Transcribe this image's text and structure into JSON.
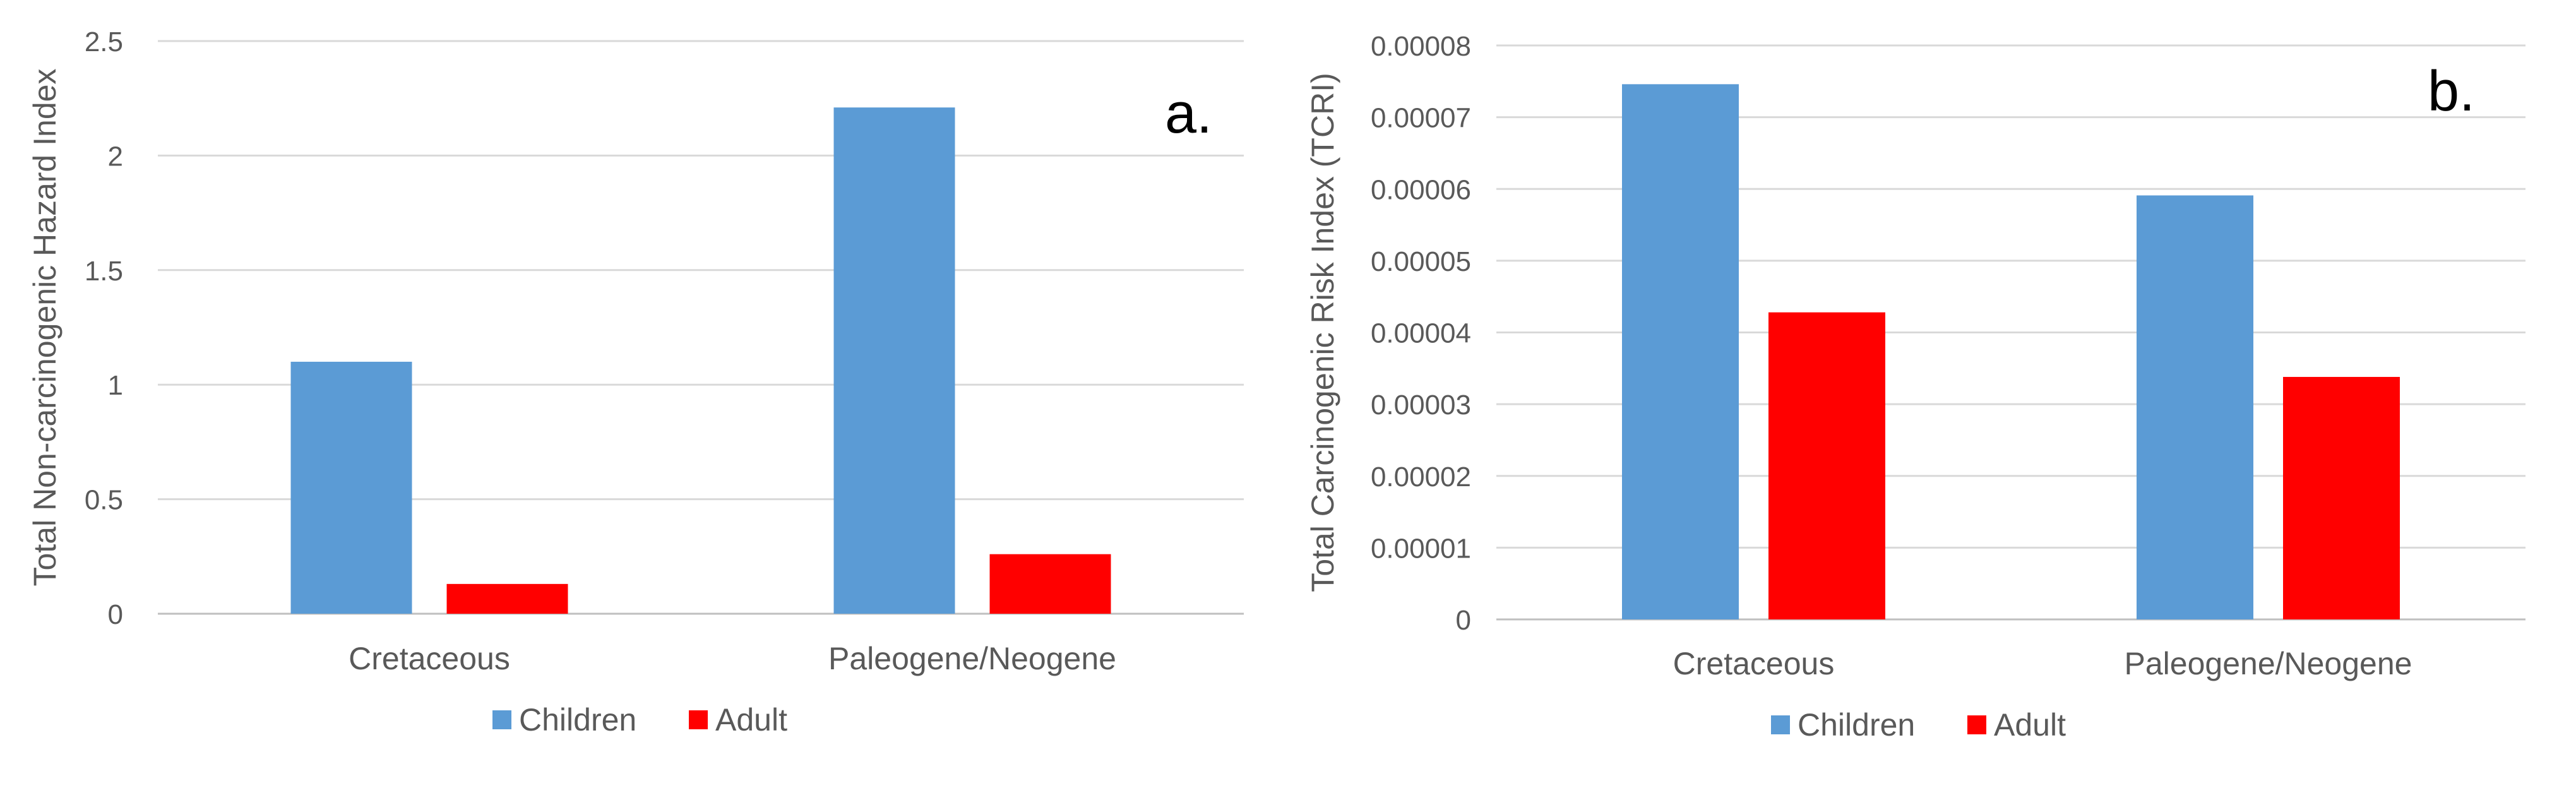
{
  "chart_data": [
    {
      "panel_label": "a.",
      "type": "bar",
      "categories": [
        "Cretaceous",
        "Paleogene/Neogene"
      ],
      "series": [
        {
          "name": "Children",
          "color": "#5B9BD5",
          "values": [
            1.1,
            2.21
          ]
        },
        {
          "name": "Adult",
          "color": "#FF0000",
          "values": [
            0.13,
            0.26
          ]
        }
      ],
      "ylabel": "Total Non-carcinogenic Hazard Index",
      "xlabel": "",
      "ylim": [
        0,
        2.5
      ],
      "yticks": [
        "0",
        "0.5",
        "1",
        "1.5",
        "2",
        "2.5"
      ],
      "grid": true,
      "legend_position": "bottom"
    },
    {
      "panel_label": "b.",
      "type": "bar",
      "categories": [
        "Cretaceous",
        "Paleogene/Neogene"
      ],
      "series": [
        {
          "name": "Children",
          "color": "#5B9BD5",
          "values": [
            7.46e-05,
            5.91e-05
          ]
        },
        {
          "name": "Adult",
          "color": "#FF0000",
          "values": [
            4.28e-05,
            3.38e-05
          ]
        }
      ],
      "ylabel": "Total Carcinogenic Risk Index (TCRI)",
      "xlabel": "",
      "ylim": [
        0,
        8e-05
      ],
      "yticks": [
        "0",
        "0.00001",
        "0.00002",
        "0.00003",
        "0.00004",
        "0.00005",
        "0.00006",
        "0.00007",
        "0.00008"
      ],
      "grid": true,
      "legend_position": "bottom"
    }
  ]
}
